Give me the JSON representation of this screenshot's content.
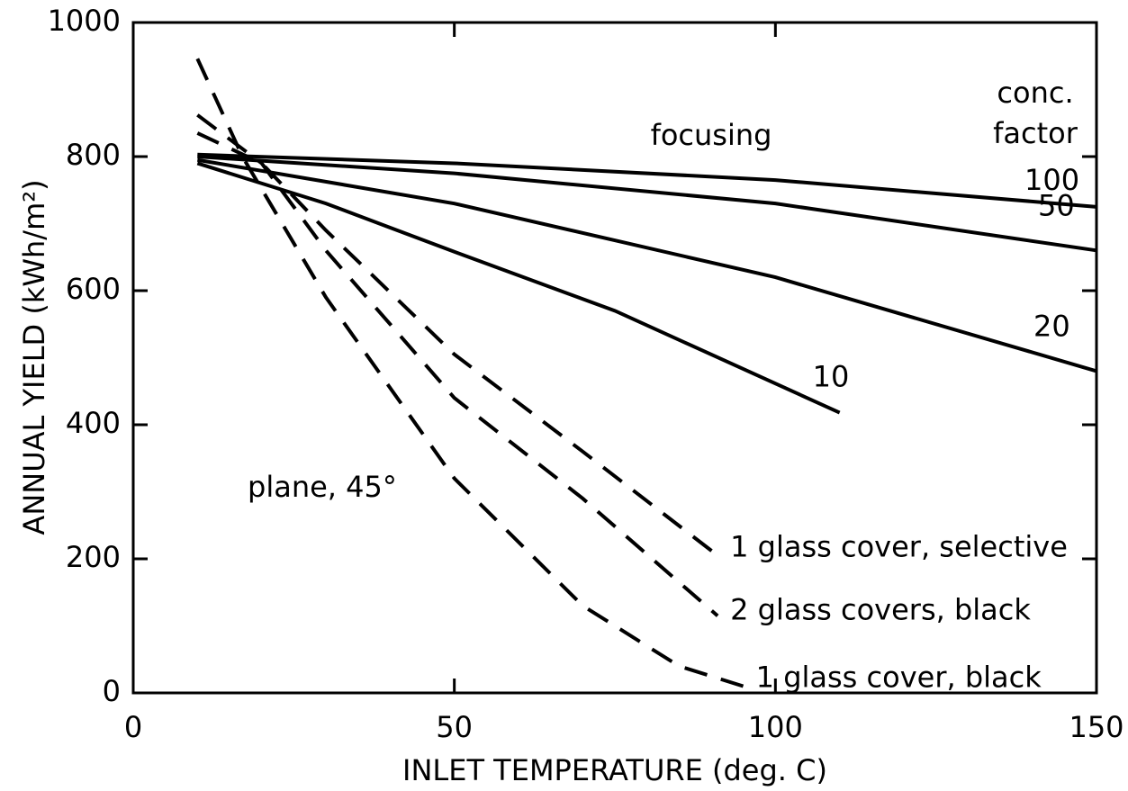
{
  "chart_data": {
    "type": "line",
    "x_label": "INLET TEMPERATURE (deg. C)",
    "y_label": "ANNUAL YIELD (kWh/m²)",
    "xlim": [
      0,
      150
    ],
    "xticks": [
      0,
      50,
      100,
      150
    ],
    "ylim": [
      0,
      1000
    ],
    "yticks": [
      0,
      200,
      400,
      600,
      800,
      1000
    ],
    "annotations": [
      "focusing",
      "conc.",
      "factor",
      "plane, 45°"
    ],
    "series": [
      {
        "name": "100",
        "color": "#000000",
        "dashed": false,
        "x": [
          10,
          50,
          100,
          150
        ],
        "values": [
          803,
          790,
          765,
          725
        ]
      },
      {
        "name": "50",
        "color": "#000000",
        "dashed": false,
        "x": [
          10,
          50,
          100,
          150
        ],
        "values": [
          800,
          775,
          730,
          660
        ]
      },
      {
        "name": "20",
        "color": "#000000",
        "dashed": false,
        "x": [
          10,
          50,
          100,
          150
        ],
        "values": [
          795,
          730,
          620,
          480
        ]
      },
      {
        "name": "10",
        "color": "#000000",
        "dashed": false,
        "x": [
          10,
          30,
          50,
          75,
          110
        ],
        "values": [
          790,
          730,
          658,
          570,
          418
        ]
      },
      {
        "name": "1 glass cover, selective",
        "color": "#000000",
        "dashed": true,
        "x": [
          10,
          20,
          30,
          50,
          70,
          91
        ],
        "values": [
          835,
          790,
          690,
          505,
          360,
          205
        ]
      },
      {
        "name": "2 glass covers, black",
        "color": "#000000",
        "dashed": true,
        "x": [
          10,
          20,
          30,
          50,
          70,
          91
        ],
        "values": [
          862,
          790,
          660,
          440,
          290,
          115
        ]
      },
      {
        "name": "1 glass cover, black",
        "color": "#000000",
        "dashed": true,
        "x": [
          10,
          17,
          30,
          50,
          70,
          85,
          95
        ],
        "values": [
          946,
          800,
          590,
          320,
          130,
          40,
          10
        ]
      }
    ]
  }
}
